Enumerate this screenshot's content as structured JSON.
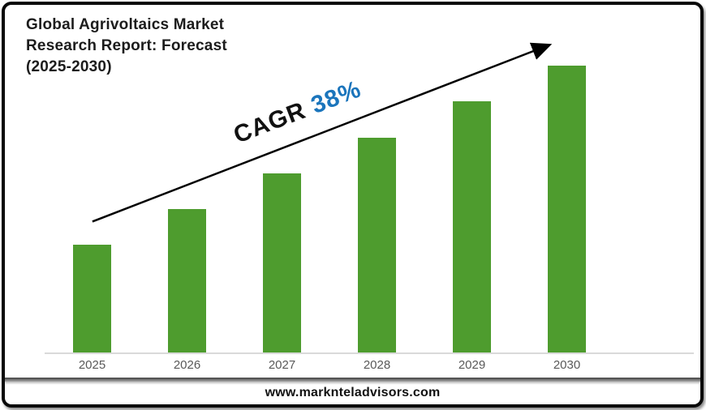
{
  "page": {
    "background_color": "#ffffff",
    "frame_border_color": "#0a0a0a"
  },
  "header": {
    "title_lines": [
      "Global Agrivoltaics Market",
      "Research Report: Forecast",
      "(2025-2030)"
    ]
  },
  "annotation": {
    "cagr_label": "CAGR",
    "cagr_value": "38%",
    "label_color": "#111111",
    "value_color": "#1B75BC",
    "arrow_color": "#000000"
  },
  "footer": {
    "website": "www.marknteladvisors.com"
  },
  "chart_data": {
    "type": "bar",
    "title": "Global Agrivoltaics Market Research Report: Forecast (2025-2030)",
    "categories": [
      "2025",
      "2026",
      "2027",
      "2028",
      "2029",
      "2030"
    ],
    "values": [
      3,
      4,
      5,
      6,
      7,
      8
    ],
    "values_note": "no numeric y-axis shown; values are relative bar heights (equal increments)",
    "xlabel": "",
    "ylabel": "",
    "ylim": [
      0,
      8
    ],
    "grid": false,
    "legend": false,
    "bar_color": "#4E9C2E",
    "axis_line_color": "#d9d9d9",
    "tick_label_color": "#595959",
    "annotations": [
      "CAGR 38%",
      "upward trend arrow from 2025 to 2030"
    ]
  }
}
